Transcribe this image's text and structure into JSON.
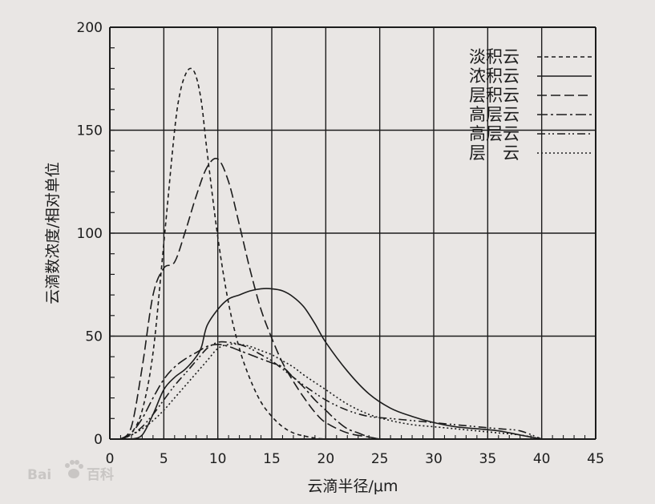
{
  "chart_data": {
    "type": "line",
    "title": "",
    "xlabel": "云滴半径/μm",
    "ylabel": "云滴数浓度/相对单位",
    "xlim": [
      0,
      45
    ],
    "ylim": [
      0,
      200
    ],
    "xticks": [
      0,
      5,
      10,
      15,
      20,
      25,
      30,
      35,
      40,
      45
    ],
    "yticks": [
      0,
      50,
      100,
      150,
      200
    ],
    "grid": true,
    "legend_position": "top-right",
    "series": [
      {
        "name": "淡积云",
        "style": "short-dash",
        "x": [
          1,
          2,
          3,
          4,
          5,
          6,
          6.5,
          7,
          7.5,
          8,
          8.5,
          9,
          10,
          11,
          12,
          13,
          14,
          15,
          16,
          17,
          18,
          19,
          20
        ],
        "y": [
          0,
          3,
          14,
          42,
          95,
          150,
          168,
          177,
          180,
          176,
          163,
          140,
          98,
          66,
          44,
          29,
          18,
          11,
          6,
          3,
          1.5,
          0.5,
          0
        ]
      },
      {
        "name": "浓积云",
        "style": "solid",
        "x": [
          2,
          3,
          4,
          5,
          6,
          7,
          8,
          8.5,
          9,
          10,
          11,
          12,
          13,
          14,
          15,
          16,
          17,
          18,
          19,
          20,
          22,
          24,
          26,
          28,
          30,
          32,
          34,
          36,
          38,
          40
        ],
        "y": [
          0,
          2,
          12,
          24,
          30,
          34,
          40,
          45,
          55,
          63,
          68,
          70,
          72,
          73,
          73,
          72,
          69,
          64,
          56,
          47,
          33,
          22,
          15,
          11,
          8,
          6,
          5,
          4,
          2,
          0
        ]
      },
      {
        "name": "层积云",
        "style": "long-dash",
        "x": [
          1,
          2,
          3,
          4,
          5,
          6,
          7,
          8,
          9,
          10,
          11,
          12,
          13,
          14,
          15,
          16,
          17,
          18,
          19,
          20,
          22,
          24,
          25
        ],
        "y": [
          0,
          6,
          35,
          70,
          83,
          86,
          101,
          118,
          132,
          136,
          125,
          104,
          82,
          63,
          49,
          37,
          28,
          20,
          13,
          8,
          3,
          1,
          0
        ]
      },
      {
        "name": "高层云",
        "style": "dash-dot",
        "x": [
          1,
          2,
          3,
          4,
          5,
          6,
          7,
          8,
          9,
          10,
          11,
          12,
          13,
          14,
          15,
          16,
          17,
          18,
          19,
          20,
          21,
          22,
          23,
          24,
          25
        ],
        "y": [
          0,
          3,
          10,
          20,
          29,
          35,
          39,
          42,
          45,
          46,
          45,
          43,
          41,
          39,
          37,
          35,
          30,
          25,
          19,
          14,
          9,
          5,
          3,
          1,
          0
        ]
      },
      {
        "name": "高层云",
        "style": "dash-dot-dot",
        "x": [
          1,
          2,
          3,
          4,
          5,
          6,
          7,
          8,
          9,
          10,
          11,
          12,
          13,
          14,
          15,
          16,
          17,
          18,
          20,
          22,
          24,
          26,
          28,
          30,
          32,
          34,
          36,
          38,
          40
        ],
        "y": [
          0,
          2,
          6,
          12,
          19,
          26,
          32,
          38,
          44,
          47,
          47,
          46,
          44,
          41,
          38,
          34,
          30,
          26,
          19,
          14,
          11,
          10,
          9,
          8,
          7,
          6,
          5,
          4,
          0
        ]
      },
      {
        "name": "层　云",
        "style": "dotted",
        "x": [
          1,
          2,
          3,
          4,
          5,
          6,
          7,
          8,
          9,
          10,
          11,
          12,
          13,
          14,
          15,
          16,
          17,
          18,
          20,
          22,
          24,
          26,
          28,
          30,
          32,
          34,
          36,
          38,
          40
        ],
        "y": [
          0,
          2,
          5,
          9,
          14,
          20,
          26,
          32,
          38,
          44,
          46,
          46,
          45,
          43,
          41,
          38,
          35,
          31,
          24,
          17,
          12,
          9,
          7,
          6,
          5,
          4,
          3,
          2,
          0
        ]
      }
    ]
  },
  "watermark": {
    "brand": "Bai",
    "paw_icon": "paw-icon",
    "suffix": "百科"
  },
  "colors": {
    "ink": "#1c1c1c",
    "paper": "#e9e6e4"
  }
}
